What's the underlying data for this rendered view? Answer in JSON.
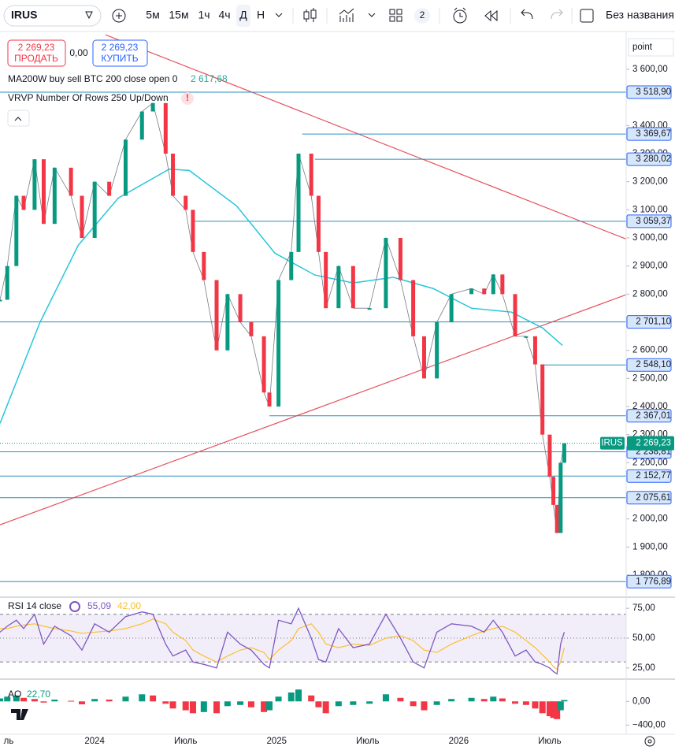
{
  "toolbar": {
    "symbol": "IRUS",
    "intervals": [
      "5м",
      "15м",
      "1ч",
      "4ч",
      "Д",
      "Н"
    ],
    "layouts_badge": "2",
    "layout_name": "Без названия"
  },
  "trade": {
    "sell_price": "2 269,23",
    "sell": "ПРОДАТЬ",
    "spread": "0,00",
    "buy_price": "2 269,23",
    "buy": "КУПИТЬ"
  },
  "indicators": {
    "ma_title": "MA200W buy sell BTC 200 close open 0",
    "ma_value": "2 617,68",
    "vrvp_title": "VRVP Number Of Rows 250 Up/Down",
    "vrvp_warning": "!"
  },
  "chart_data": {
    "type": "candle-line",
    "symbol": "IRUS",
    "axis_unit": "point",
    "x": [
      2023.48,
      2023.52,
      2023.57,
      2023.61,
      2023.67,
      2023.72,
      2023.78,
      2023.87,
      2023.93,
      2024.0,
      2024.08,
      2024.17,
      2024.26,
      2024.32,
      2024.39,
      2024.43,
      2024.5,
      2024.54,
      2024.6,
      2024.67,
      2024.73,
      2024.8,
      2024.86,
      2024.93,
      2024.96,
      2025.01,
      2025.08,
      2025.12,
      2025.19,
      2025.23,
      2025.27,
      2025.34,
      2025.42,
      2025.51,
      2025.6,
      2025.68,
      2025.75,
      2025.81,
      2025.88,
      2025.96,
      2026.07,
      2026.14,
      2026.19,
      2026.24,
      2026.31,
      2026.37,
      2026.42,
      2026.46,
      2026.5,
      2026.52,
      2026.54,
      2026.56,
      2026.58
    ],
    "values": [
      2780,
      2900,
      3150,
      3100,
      3280,
      3050,
      3250,
      3150,
      3000,
      3200,
      3150,
      3350,
      3450,
      3480,
      3300,
      3150,
      3100,
      2950,
      2850,
      2600,
      2800,
      2700,
      2650,
      2450,
      2400,
      2850,
      2950,
      3300,
      3150,
      2950,
      2750,
      2900,
      2750,
      2750,
      3000,
      2850,
      2650,
      2500,
      2700,
      2800,
      2820,
      2800,
      2870,
      2800,
      2650,
      2650,
      2550,
      2300,
      2150,
      2050,
      1950,
      2200,
      2269.23
    ],
    "up_color": "#089981",
    "down_color": "#f23645",
    "xlim": [
      2023.48,
      2026.92
    ],
    "xticks": [
      {
        "value": 2023.5,
        "label": "ль"
      },
      2024,
      {
        "value": 2024.5,
        "label": "Июль"
      },
      2025,
      {
        "value": 2025.5,
        "label": "Июль"
      },
      2026,
      {
        "value": 2026.5,
        "label": "Июль"
      }
    ],
    "ylim": [
      1730,
      3729
    ],
    "yticks": [
      {
        "value": 3600,
        "label": "3 600,00"
      },
      {
        "value": 3400,
        "label": "3 400,00"
      },
      {
        "value": 3300,
        "label": "3 300,00"
      },
      {
        "value": 3200,
        "label": "3 200,00"
      },
      {
        "value": 3100,
        "label": "3 100,00"
      },
      {
        "value": 3000,
        "label": "3 000,00"
      },
      {
        "value": 2900,
        "label": "2 900,00"
      },
      {
        "value": 2800,
        "label": "2 800,00"
      },
      {
        "value": 2600,
        "label": "2 600,00"
      },
      {
        "value": 2500,
        "label": "2 500,00"
      },
      {
        "value": 2400,
        "label": "2 400,00"
      },
      {
        "value": 2300,
        "label": "2 300,00"
      },
      {
        "value": 2200,
        "label": "2 200,00"
      },
      {
        "value": 2000,
        "label": "2 000,00"
      },
      {
        "value": 1900,
        "label": "1 900,00"
      },
      {
        "value": 1800,
        "label": "1 800,00"
      }
    ],
    "ma": {
      "color": "#26c6da",
      "x": [
        2023.48,
        2023.7,
        2023.91,
        2024.13,
        2024.41,
        2024.52,
        2024.78,
        2024.99,
        2025.21,
        2025.42,
        2025.64,
        2025.86,
        2026.07,
        2026.29,
        2026.46,
        2026.57
      ],
      "values": [
        2340,
        2700,
        2974,
        3142,
        3245,
        3240,
        3114,
        2946,
        2868,
        2840,
        2860,
        2820,
        2750,
        2736,
        2680,
        2617.68
      ]
    },
    "trend_lines": [
      {
        "color": "#e5525f",
        "x": [
          2024.06,
          2026.92
        ],
        "values": [
          3723,
          2996
        ]
      },
      {
        "color": "#e5525f",
        "x": [
          2023.48,
          2026.92
        ],
        "values": [
          1979,
          2798
        ]
      }
    ],
    "level_color": "#2a8fbd",
    "levels": [
      {
        "value": 3518.9,
        "label": "3 518,90",
        "from": 2023.48
      },
      {
        "value": 3369.67,
        "label": "3 369,67",
        "from": 2025.14
      },
      {
        "value": 3280.02,
        "label": "3 280,02",
        "from": 2025.21
      },
      {
        "value": 3059.37,
        "label": "3 059,37",
        "from": 2024.55
      },
      {
        "value": 2701.1,
        "label": "2 701,10",
        "from": 2023.48
      },
      {
        "value": 2548.1,
        "label": "2 548,10",
        "from": 2026.45
      },
      {
        "value": 2367.01,
        "label": "2 367,01",
        "from": 2024.96
      },
      {
        "value": 2238.81,
        "label": "2 238,81",
        "from": 2023.48
      },
      {
        "value": 2152.77,
        "label": "2 152,77",
        "from": 2023.48
      },
      {
        "value": 2075.61,
        "label": "2 075,61",
        "from": 2023.48
      },
      {
        "value": 1776.89,
        "label": "1 776,89",
        "from": 2023.48
      }
    ],
    "last_price": {
      "value": 2269.23,
      "label": "2 269,23",
      "color": "#089981"
    }
  },
  "rsi": {
    "title": "RSI 14 close",
    "color": "#7e57c2",
    "ma_color": "#fbc02d",
    "values": [
      55,
      60,
      65,
      58,
      70,
      45,
      60,
      52,
      40,
      62,
      55,
      68,
      72,
      70,
      45,
      35,
      40,
      30,
      28,
      25,
      55,
      45,
      40,
      28,
      25,
      65,
      62,
      75,
      50,
      32,
      30,
      58,
      42,
      45,
      70,
      50,
      30,
      25,
      55,
      62,
      60,
      55,
      65,
      55,
      35,
      40,
      30,
      28,
      25,
      22,
      20,
      45,
      55.09
    ],
    "ma": [
      58,
      58,
      60,
      61,
      62,
      60,
      58,
      56,
      54,
      55,
      56,
      58,
      62,
      66,
      62,
      55,
      48,
      40,
      35,
      30,
      35,
      40,
      42,
      38,
      32,
      40,
      48,
      58,
      62,
      55,
      45,
      42,
      45,
      44,
      50,
      52,
      48,
      40,
      38,
      45,
      52,
      56,
      58,
      60,
      55,
      48,
      42,
      36,
      30,
      26,
      24,
      30,
      42
    ],
    "value_label": "55,09",
    "ma_label": "42,00",
    "band": [
      30,
      70
    ],
    "ylim": [
      18.3,
      81.7
    ],
    "yticks": [
      {
        "value": 75,
        "label": "75,00"
      },
      {
        "value": 50,
        "label": "50,00"
      },
      {
        "value": 25,
        "label": "25,00"
      }
    ]
  },
  "ao": {
    "title": "AO",
    "values": [
      50,
      80,
      100,
      60,
      40,
      -20,
      30,
      10,
      -50,
      40,
      30,
      80,
      120,
      100,
      -40,
      -120,
      -150,
      -200,
      -180,
      -200,
      -80,
      -60,
      -100,
      -180,
      -150,
      80,
      150,
      200,
      100,
      -100,
      -200,
      -80,
      -60,
      -40,
      120,
      60,
      -80,
      -150,
      -60,
      40,
      60,
      40,
      80,
      50,
      -40,
      -60,
      -120,
      -200,
      -250,
      -280,
      -300,
      -150,
      22.7
    ],
    "value_label": "22,70",
    "ylim": [
      -555,
      323
    ],
    "yticks": [
      {
        "value": 0,
        "label": "0,00"
      },
      {
        "value": -400,
        "label": "−400,00"
      }
    ]
  }
}
